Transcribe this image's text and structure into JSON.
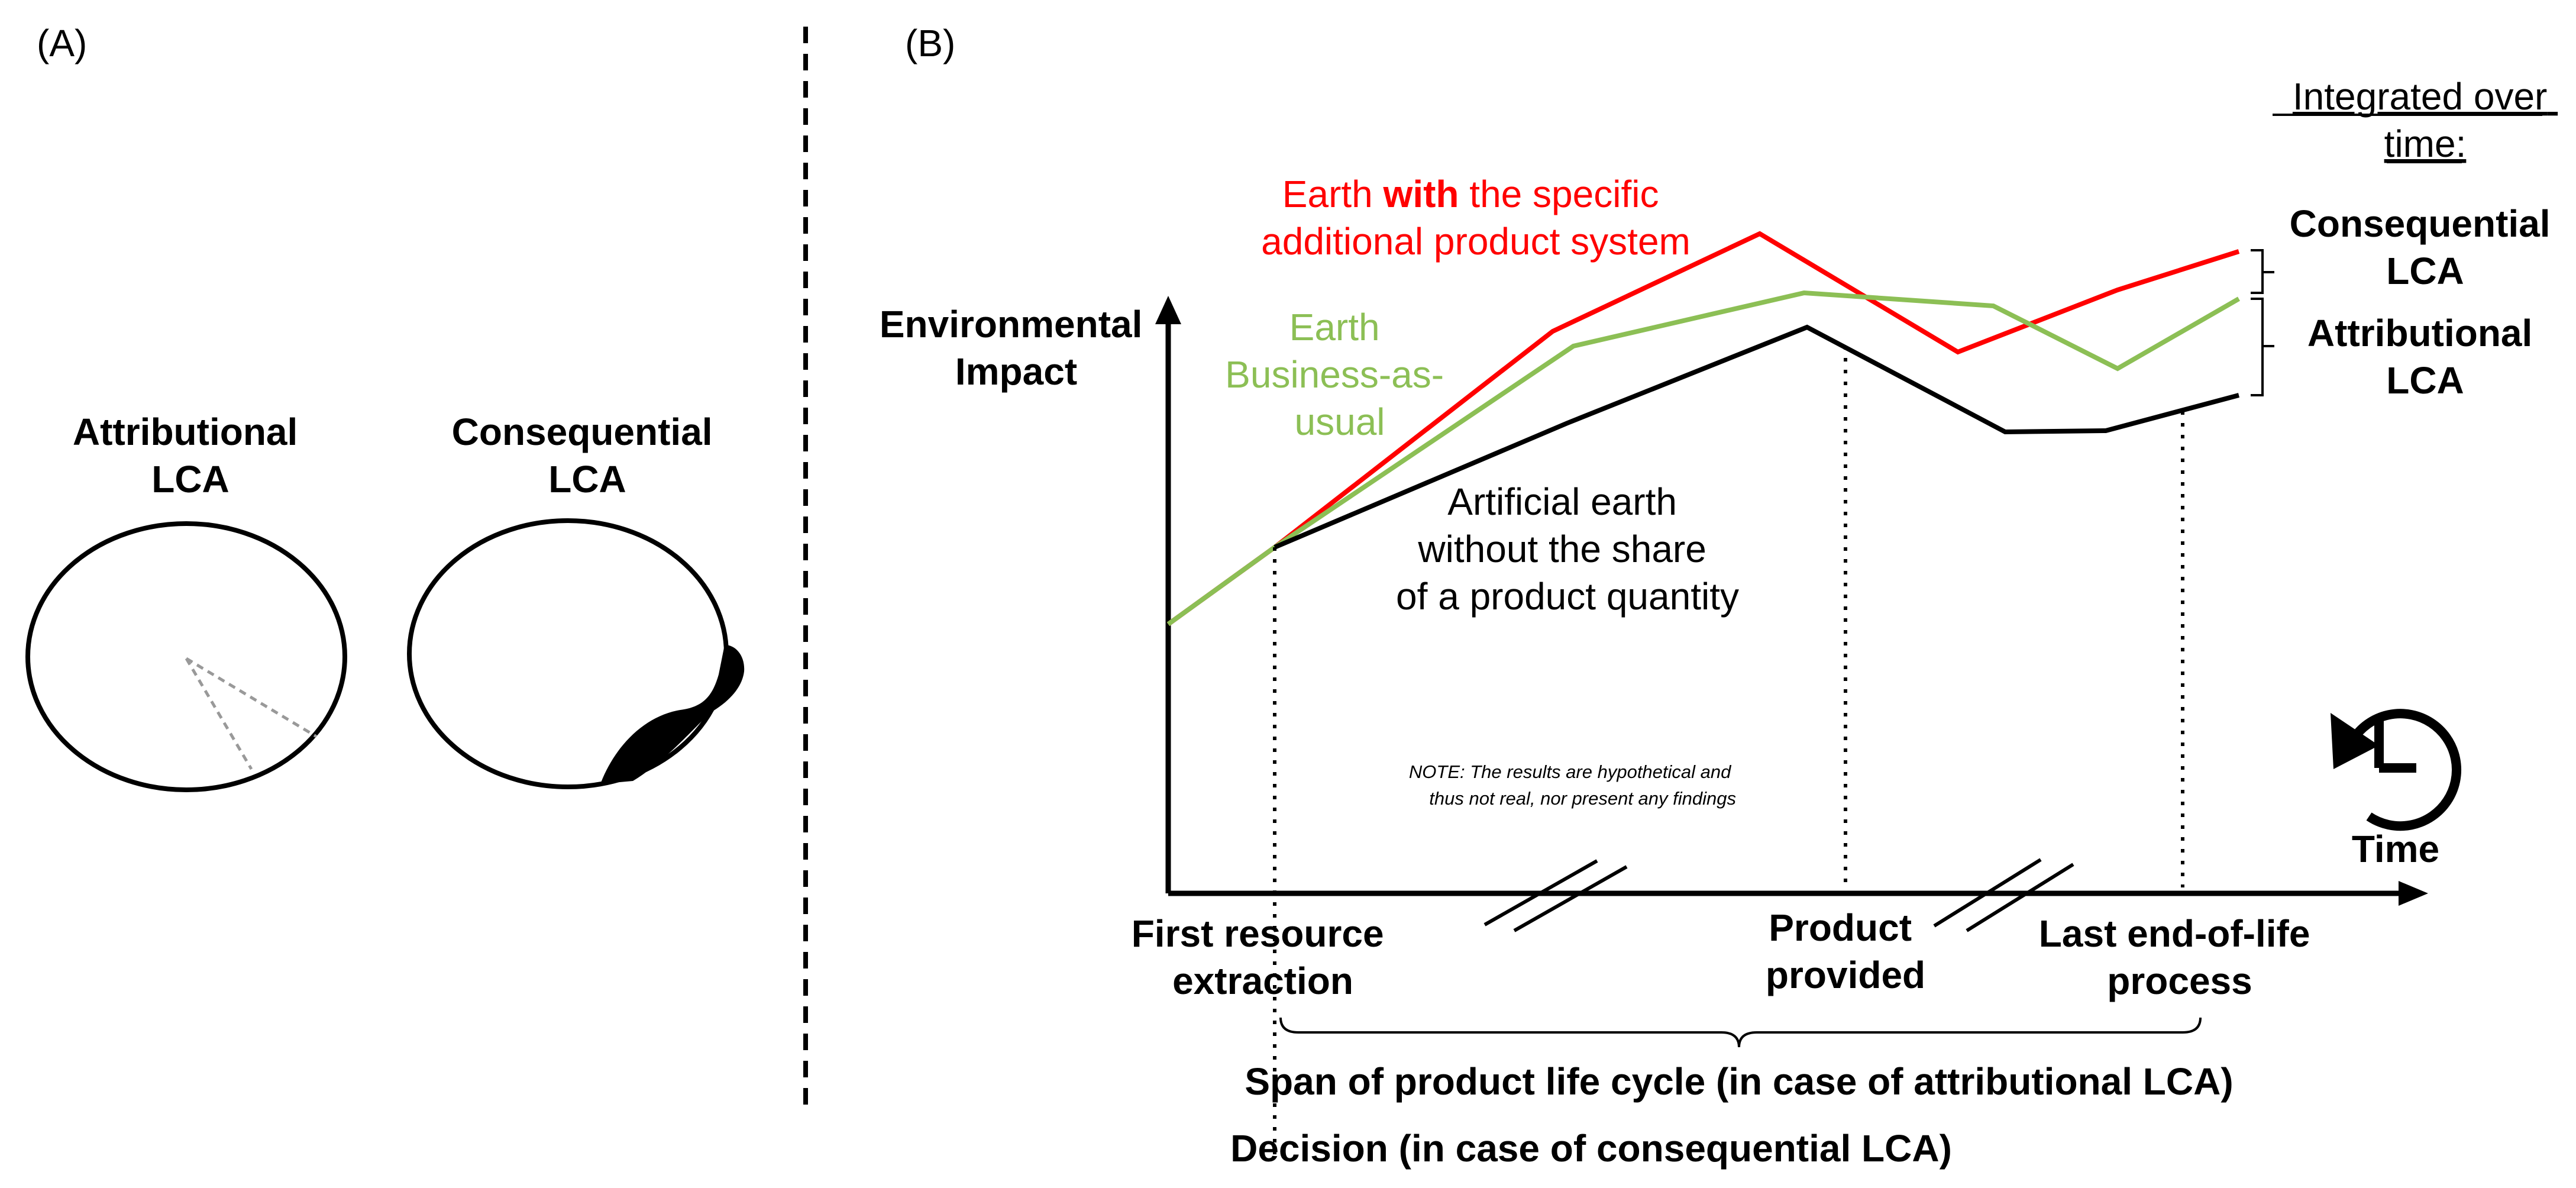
{
  "panel_a": {
    "label": "(A)",
    "attributional_title": [
      "Attributional",
      "LCA"
    ],
    "consequential_title": [
      "Consequential",
      "LCA"
    ]
  },
  "panel_b": {
    "label": "(B)",
    "y_axis_label": [
      "Environmental",
      "Impact"
    ],
    "time_label": "Time",
    "red_label_line1_a": "Earth ",
    "red_label_line1_b": "with",
    "red_label_line1_c": " the specific",
    "red_label_line2": "additional product system",
    "green_label": [
      "Earth",
      "Business-as-",
      "usual"
    ],
    "black_label": [
      "Artificial earth",
      "without the share",
      "of a product quantity"
    ],
    "note": [
      "NOTE: The results are hypothetical and",
      "thus not real, nor present any findings"
    ],
    "integrated_label": [
      "Integrated over",
      "time:"
    ],
    "consequential_bracket": [
      "Consequential",
      "LCA"
    ],
    "attributional_bracket": [
      "Attributional",
      "LCA"
    ],
    "x_first": [
      "First resource",
      "extraction"
    ],
    "x_product": [
      "Product",
      "provided"
    ],
    "x_last": [
      "Last end-of-life",
      "process"
    ],
    "span_label": "Span of product life cycle (in case of attributional LCA)",
    "decision_label": "Decision (in case of consequential LCA)",
    "colors": {
      "red": "#ff0000",
      "green": "#8cbf55",
      "black": "#000000"
    }
  }
}
